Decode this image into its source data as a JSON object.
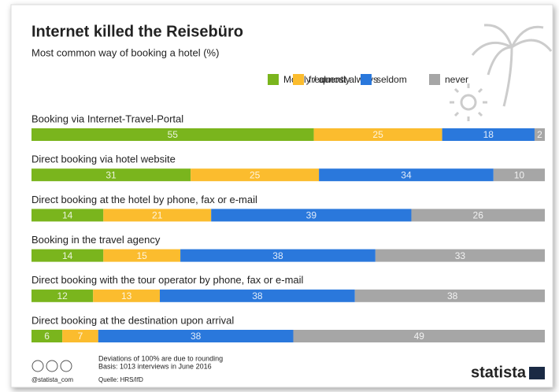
{
  "chart_data": {
    "type": "stacked-bar",
    "title": "Internet killed the Reisebüro",
    "subtitle": "Most common way of booking a hotel (%)",
    "categories": [
      "Booking via Internet-Travel-Portal",
      "Direct booking via hotel website",
      "Direct booking at the hotel by phone, fax or e-mail",
      "Booking in the travel agency",
      "Direct booking with the tour operator by phone, fax or e-mail",
      "Direct booking at the destination upon arrival"
    ],
    "series": [
      {
        "name": "Mostly / almost always",
        "color": "#7ab51d",
        "values": [
          55,
          31,
          14,
          14,
          12,
          6
        ]
      },
      {
        "name": "frequently",
        "color": "#fbbc2e",
        "values": [
          25,
          25,
          21,
          15,
          13,
          7
        ]
      },
      {
        "name": "seldom",
        "color": "#2a78dc",
        "values": [
          18,
          34,
          39,
          38,
          38,
          38
        ]
      },
      {
        "name": "never",
        "color": "#a6a6a6",
        "values": [
          2,
          10,
          26,
          33,
          38,
          49
        ]
      }
    ],
    "xlim": [
      0,
      100
    ],
    "notes": [
      "Deviations of 100% are due to rounding",
      "Basis: 1013 interviews in June 2016"
    ],
    "handle": "@statista_com",
    "source": "Quelle: HRS/IfD",
    "brand": "statista"
  }
}
